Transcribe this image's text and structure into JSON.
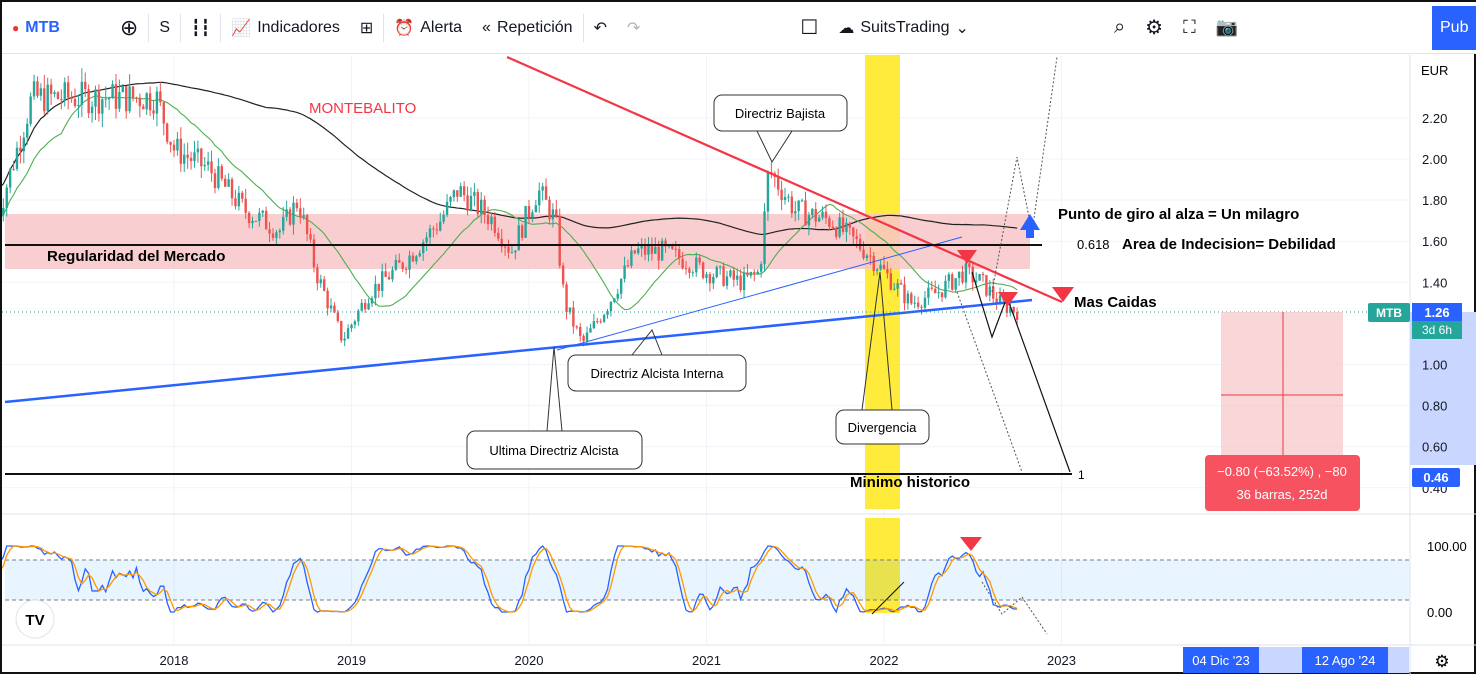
{
  "toolbar": {
    "symbol": "MTB",
    "interval": "S",
    "indicators": "Indicadores",
    "alert": "Alerta",
    "replay": "Repetición",
    "layout_name": "SuitsTrading",
    "publish": "Pub"
  },
  "axis": {
    "currency": "EUR",
    "price_ticks": [
      "2.20",
      "2.00",
      "1.80",
      "1.60",
      "1.40",
      "1.00",
      "0.80",
      "0.60",
      "0.40"
    ],
    "osc_ticks": [
      "100.00",
      "0.00"
    ],
    "time_ticks": [
      "2018",
      "2019",
      "2020",
      "2021",
      "2022",
      "2023"
    ],
    "range_start": "04 Dic '23",
    "range_end": "12 Ago '24"
  },
  "price_badge": {
    "symbol": "MTB",
    "price": "1.26",
    "countdown": "3d 6h",
    "target": "0.46"
  },
  "measure": {
    "line1": "−0.80 (−63.52%) , −80",
    "line2": "36 barras, 252d"
  },
  "annotations": {
    "title": "MONTEBALITO",
    "bajista": "Directriz Bajista",
    "alcista_interna": "Directriz Alcista Interna",
    "ultima_alcista": "Ultima Directriz Alcista",
    "divergencia": "Divergencia",
    "regularidad": "Regularidad del Mercado",
    "fib": "0.618",
    "indecision": "Area de Indecision= Debilidad",
    "milagro": "Punto de giro al alza = Un milagro",
    "caidas": "Mas Caidas",
    "minimo": "Minimo historico",
    "fib_one": "1"
  },
  "colors": {
    "up": "#26a69a",
    "down": "#ef5350",
    "accent": "#2962ff",
    "resistance": "#f23645",
    "zone": "#f7c5c8",
    "highlight": "#ffeb3b"
  },
  "chart_data": {
    "type": "candlestick",
    "symbol": "MTB",
    "currency": "EUR",
    "timeframe": "weekly",
    "ylim": [
      0.38,
      2.45
    ],
    "close_path": [
      [
        2017.0,
        1.7
      ],
      [
        2017.2,
        2.3
      ],
      [
        2017.9,
        2.3
      ],
      [
        2018.0,
        2.05
      ],
      [
        2018.2,
        1.95
      ],
      [
        2018.4,
        1.75
      ],
      [
        2018.6,
        1.65
      ],
      [
        2018.7,
        1.8
      ],
      [
        2018.8,
        1.45
      ],
      [
        2018.95,
        1.12
      ],
      [
        2019.1,
        1.35
      ],
      [
        2019.3,
        1.5
      ],
      [
        2019.5,
        1.7
      ],
      [
        2019.6,
        1.85
      ],
      [
        2019.8,
        1.7
      ],
      [
        2019.9,
        1.55
      ],
      [
        2020.05,
        1.85
      ],
      [
        2020.15,
        1.7
      ],
      [
        2020.2,
        1.3
      ],
      [
        2020.3,
        1.1
      ],
      [
        2020.45,
        1.3
      ],
      [
        2020.6,
        1.55
      ],
      [
        2020.75,
        1.55
      ],
      [
        2020.9,
        1.5
      ],
      [
        2021.0,
        1.45
      ],
      [
        2021.2,
        1.4
      ],
      [
        2021.3,
        1.45
      ],
      [
        2021.35,
        1.95
      ],
      [
        2021.5,
        1.75
      ],
      [
        2021.7,
        1.7
      ],
      [
        2021.9,
        1.55
      ],
      [
        2022.0,
        1.45
      ],
      [
        2022.15,
        1.3
      ],
      [
        2022.3,
        1.35
      ],
      [
        2022.45,
        1.45
      ],
      [
        2022.55,
        1.4
      ],
      [
        2022.65,
        1.3
      ],
      [
        2022.75,
        1.26
      ]
    ],
    "levels": {
      "regularidad": 1.59,
      "minimo_historico": 0.46
    },
    "oscillator": {
      "ylim": [
        0,
        100
      ],
      "bands": [
        20,
        80
      ]
    }
  }
}
